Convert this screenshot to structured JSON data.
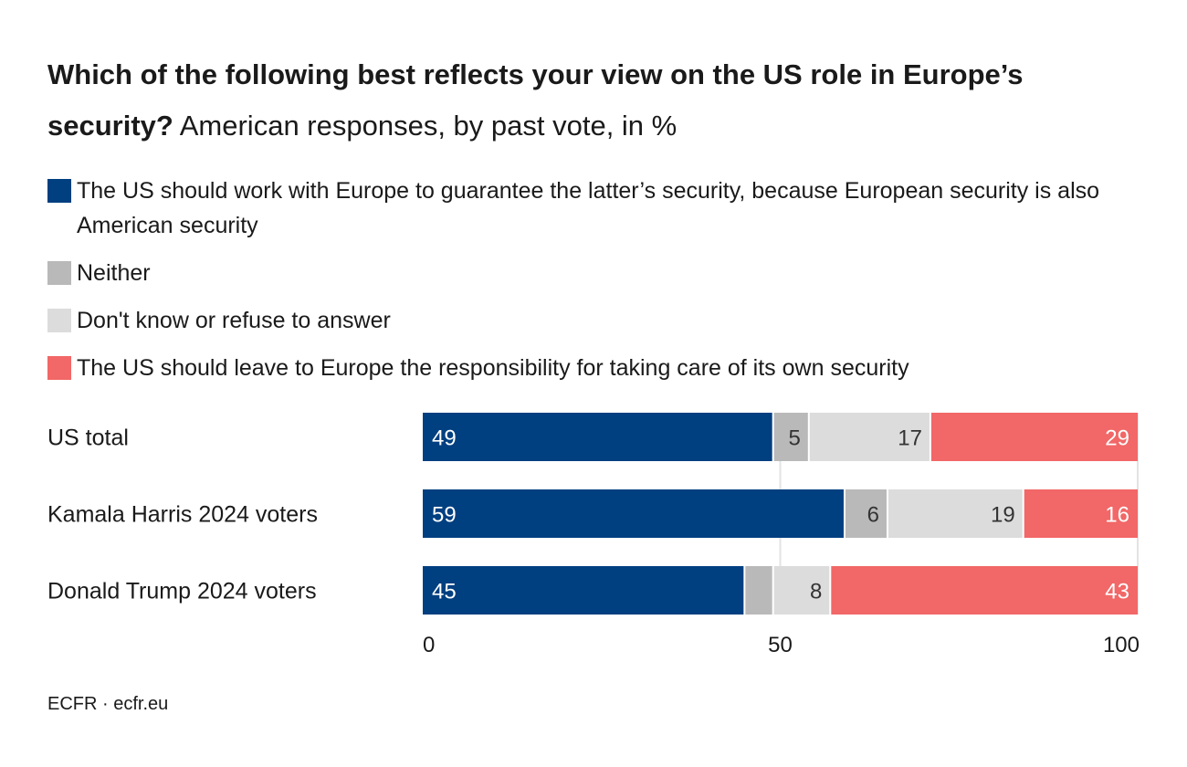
{
  "title_bold": "Which of the following best reflects your view on the US role in Europe’s security?",
  "title_rest": " American responses, by past vote, in %",
  "source": "ECFR · ecfr.eu",
  "chart_data": {
    "type": "bar",
    "orientation": "horizontal",
    "stacked": true,
    "categories": [
      "US total",
      "Kamala Harris 2024 voters",
      "Donald Trump 2024 voters"
    ],
    "series": [
      {
        "name": "The US should work with Europe to guarantee the latter’s security, because European security is also American security",
        "color": "#003f80",
        "values": [
          49,
          59,
          45
        ]
      },
      {
        "name": "Neither",
        "color": "#b9b9b9",
        "values": [
          5,
          6,
          4
        ]
      },
      {
        "name": "Don't know or refuse to answer",
        "color": "#dcdcdc",
        "values": [
          17,
          19,
          8
        ]
      },
      {
        "name": "The US should leave to Europe the responsibility for taking care of its own security",
        "color": "#f26767",
        "values": [
          29,
          16,
          43
        ]
      }
    ],
    "data_labels": [
      [
        "49",
        "5",
        "17",
        "29"
      ],
      [
        "59",
        "6",
        "19",
        "16"
      ],
      [
        "45",
        "",
        "8",
        "43"
      ]
    ],
    "xlim": [
      0,
      100
    ],
    "xticks": [
      "0",
      "50",
      "100"
    ],
    "grid": true,
    "legend_placement": "top"
  }
}
